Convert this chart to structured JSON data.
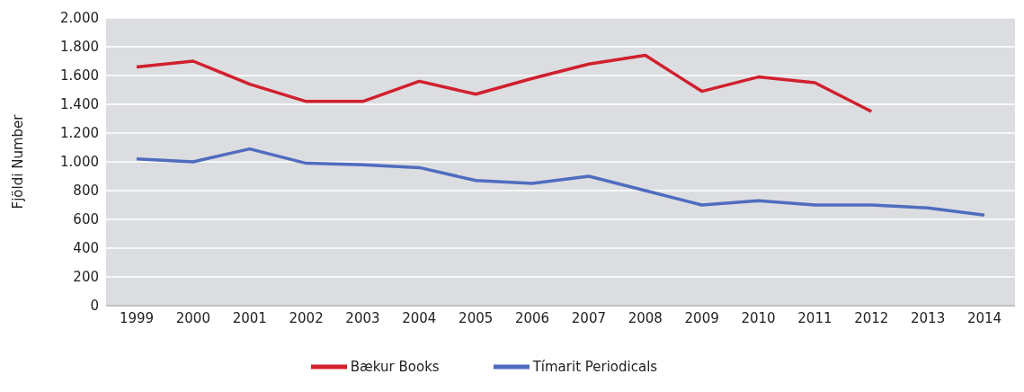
{
  "chart_data": {
    "type": "line",
    "ylabel": "Fjöldi Number",
    "categories": [
      "1999",
      "2000",
      "2001",
      "2002",
      "2003",
      "2004",
      "2005",
      "2006",
      "2007",
      "2008",
      "2009",
      "2010",
      "2011",
      "2012",
      "2013",
      "2014"
    ],
    "series": [
      {
        "name": "Bækur Books",
        "color": "#d0202e",
        "values": [
          1660,
          1700,
          1540,
          1420,
          1420,
          1560,
          1470,
          1580,
          1680,
          1740,
          1490,
          1590,
          1550,
          1350,
          null,
          null
        ]
      },
      {
        "name": "Tímarit Periodicals",
        "color": "#4f6cbf",
        "values": [
          1020,
          1000,
          1090,
          990,
          980,
          960,
          870,
          850,
          900,
          800,
          700,
          730,
          700,
          700,
          680,
          630
        ]
      }
    ],
    "ylim": [
      0,
      2000
    ],
    "yticks": [
      0,
      {
        "value": 200,
        "label": "200"
      },
      {
        "value": 400,
        "label": "400"
      },
      {
        "value": 600,
        "label": "600"
      },
      {
        "value": 800,
        "label": "800"
      },
      {
        "value": 1000,
        "label": "1.000"
      },
      {
        "value": 1200,
        "label": "1.200"
      },
      {
        "value": 1400,
        "label": "1.400"
      },
      {
        "value": 1600,
        "label": "1.600"
      },
      {
        "value": 1800,
        "label": "1.800"
      },
      {
        "value": 2000,
        "label": "2.000"
      }
    ],
    "grid": "y",
    "legend": "bottom",
    "marker": "none",
    "line_style": "solid"
  }
}
